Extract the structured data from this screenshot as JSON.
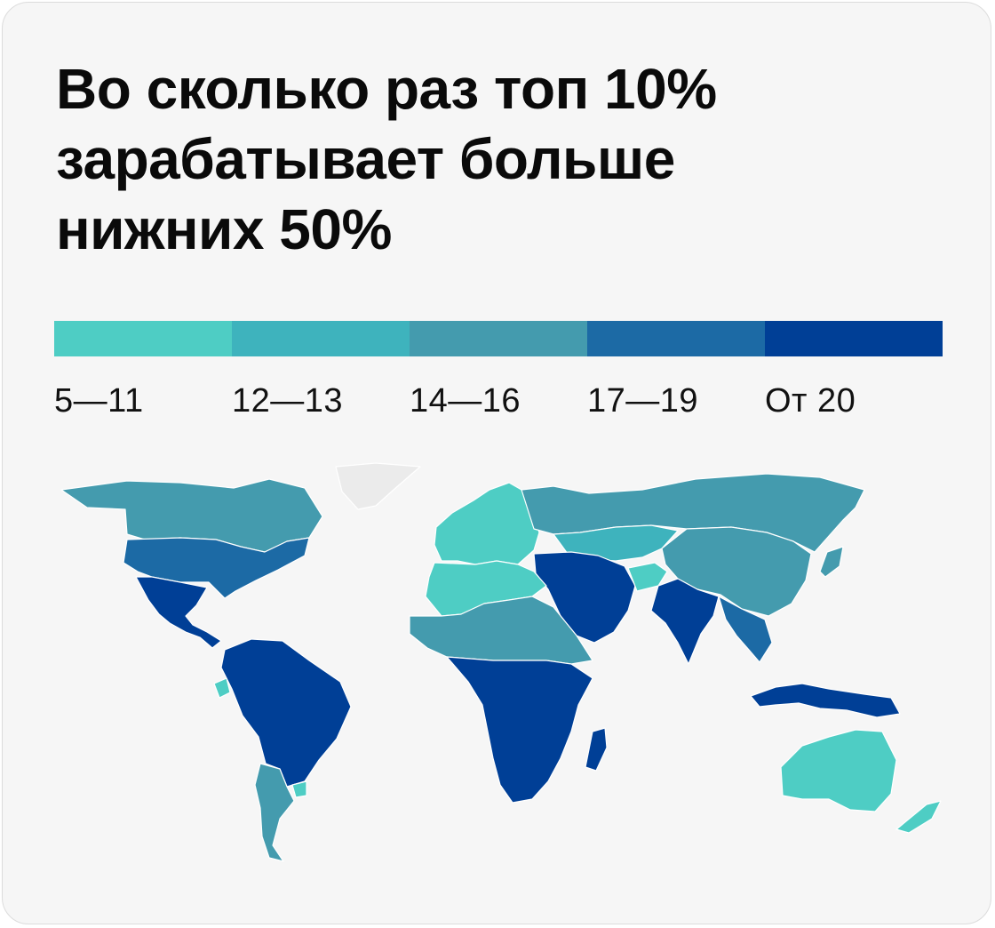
{
  "title": {
    "line1": "Во сколько раз топ 10%",
    "line2": "зарабатывает больше",
    "line3": "нижних 50%"
  },
  "legend": [
    {
      "label": "5—11",
      "color": "#4ecdc4"
    },
    {
      "label": "12—13",
      "color": "#3eb3bd"
    },
    {
      "label": "14—16",
      "color": "#449bae"
    },
    {
      "label": "17—19",
      "color": "#1c6aa5"
    },
    {
      "label": "От 20",
      "color": "#003f96"
    }
  ],
  "colors": {
    "no_data": "#ebebeb",
    "background": "#f6f6f6"
  },
  "regions": [
    {
      "name": "canada",
      "bin": 3
    },
    {
      "name": "usa",
      "bin": 4
    },
    {
      "name": "mexico-central-america",
      "bin": 5
    },
    {
      "name": "greenland",
      "bin": 0
    },
    {
      "name": "south-america",
      "bin": 5
    },
    {
      "name": "argentina",
      "bin": 3
    },
    {
      "name": "ecuador",
      "bin": 1
    },
    {
      "name": "uruguay",
      "bin": 1
    },
    {
      "name": "europe",
      "bin": 1
    },
    {
      "name": "russia",
      "bin": 3
    },
    {
      "name": "kazakhstan-central-asia",
      "bin": 2
    },
    {
      "name": "china-mongolia",
      "bin": 3
    },
    {
      "name": "middle-east",
      "bin": 5
    },
    {
      "name": "afghanistan",
      "bin": 1
    },
    {
      "name": "india",
      "bin": 5
    },
    {
      "name": "north-africa",
      "bin": 1
    },
    {
      "name": "sahel",
      "bin": 3
    },
    {
      "name": "central-southern-africa",
      "bin": 5
    },
    {
      "name": "madagascar",
      "bin": 5
    },
    {
      "name": "southeast-asia",
      "bin": 4
    },
    {
      "name": "indonesia-png",
      "bin": 5
    },
    {
      "name": "japan",
      "bin": 3
    },
    {
      "name": "australia",
      "bin": 1
    },
    {
      "name": "new-zealand",
      "bin": 1
    }
  ]
}
